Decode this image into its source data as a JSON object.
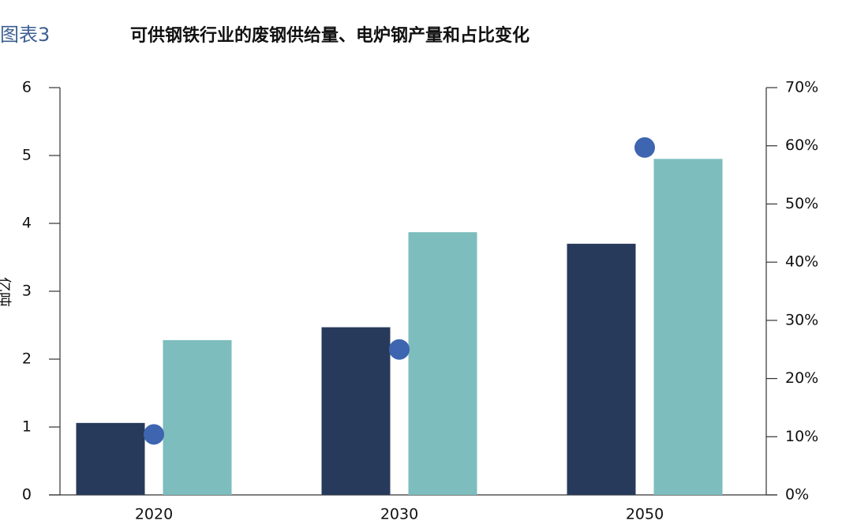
{
  "chart_data": {
    "type": "bar",
    "figure_label": "图表3",
    "title": "可供钢铁行业的废钢供给量、电炉钢产量和占比变化",
    "ylabel": "亿吨",
    "categories": [
      "2020",
      "2030",
      "2050"
    ],
    "series": [
      {
        "color": "#283a5b",
        "values": [
          1.06,
          2.47,
          3.7
        ]
      },
      {
        "color": "#7dbdbd",
        "values": [
          2.28,
          3.87,
          4.95
        ]
      },
      {
        "color": "#3d65b0",
        "values": [
          10.4,
          25.0,
          59.7
        ],
        "axis": "y2",
        "type": "scatter"
      }
    ],
    "ylim": [
      0,
      6
    ],
    "yticks": [
      0,
      1,
      2,
      3,
      4,
      5,
      6
    ],
    "y2lim": [
      0,
      70
    ],
    "y2ticks": [
      {
        "value": 0,
        "label": "0%"
      },
      {
        "value": 10,
        "label": "10%"
      },
      {
        "value": 20,
        "label": "20%"
      },
      {
        "value": 30,
        "label": "30%"
      },
      {
        "value": 40,
        "label": "40%"
      },
      {
        "value": 50,
        "label": "50%"
      },
      {
        "value": 60,
        "label": "60%"
      },
      {
        "value": 70,
        "label": "70%"
      }
    ]
  }
}
